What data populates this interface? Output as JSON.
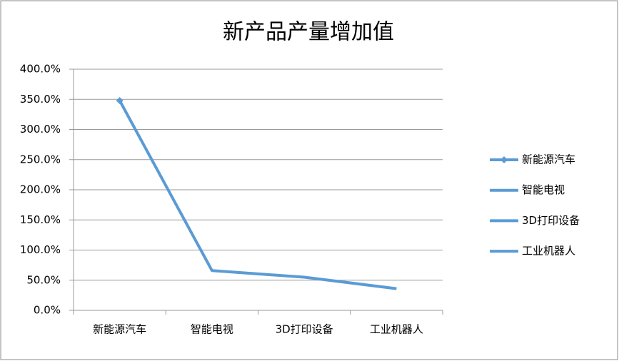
{
  "chart_data": {
    "type": "line",
    "title": "新产品产量增加值",
    "categories": [
      "新能源汽车",
      "智能电视",
      "3D打印设备",
      "工业机器人"
    ],
    "series": [
      {
        "name": "新能源汽车",
        "color": "#5b9bd5",
        "values": [
          348,
          66,
          55,
          36
        ]
      }
    ],
    "ylim": [
      0,
      400
    ],
    "yticks": [
      {
        "value": 0,
        "label": "0.0%"
      },
      {
        "value": 50,
        "label": "50.0%"
      },
      {
        "value": 100,
        "label": "100.0%"
      },
      {
        "value": 150,
        "label": "150.0%"
      },
      {
        "value": 200,
        "label": "200.0%"
      },
      {
        "value": 250,
        "label": "250.0%"
      },
      {
        "value": 300,
        "label": "300.0%"
      },
      {
        "value": 350,
        "label": "350.0%"
      },
      {
        "value": 400,
        "label": "400.0%"
      }
    ],
    "grid": true,
    "legend": "right"
  }
}
